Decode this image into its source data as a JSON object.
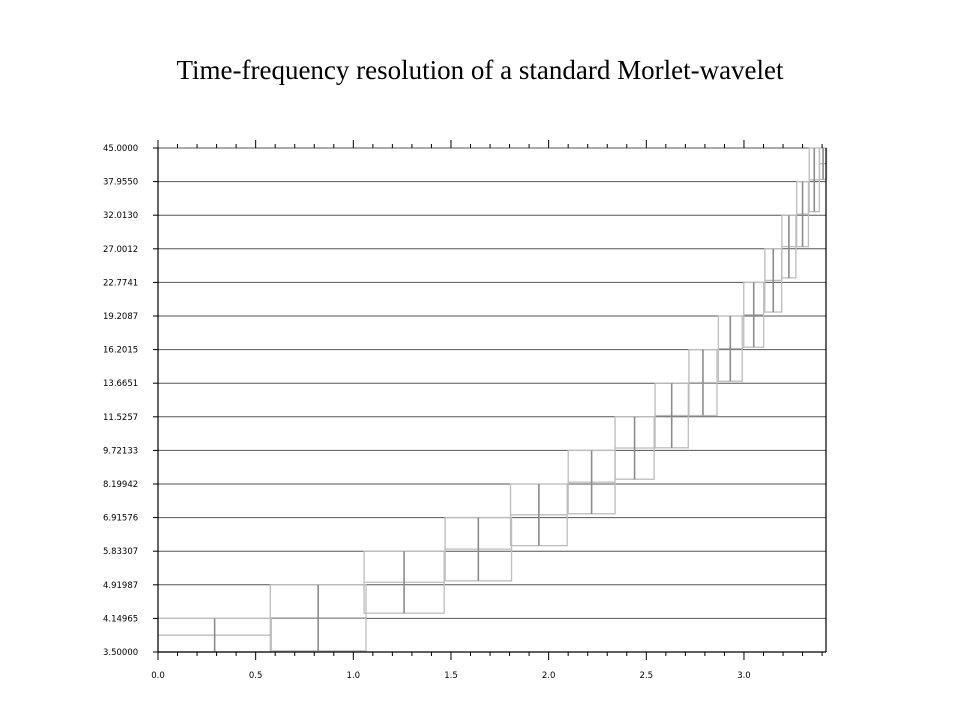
{
  "chart_data": {
    "type": "box",
    "title": "Time-frequency resolution of a standard Morlet-wavelet",
    "xlabel": "",
    "ylabel": "",
    "xlim": [
      0,
      3.42
    ],
    "x_ticks": [
      "0.0",
      "0.5",
      "1.0",
      "1.5",
      "2.0",
      "2.5",
      "3.0"
    ],
    "y_ticks": [
      "3.50000",
      "4.14965",
      "4.91987",
      "5.83307",
      "6.91576",
      "8.19942",
      "9.72133",
      "11.5257",
      "13.6651",
      "16.2015",
      "19.2087",
      "22.7741",
      "27.0012",
      "32.0130",
      "37.9550",
      "45.0000"
    ],
    "grid": "horizontal",
    "box_color": "#bdbdbd",
    "center_line_color": "#8c8c8c",
    "tiles": [
      {
        "level": 0,
        "t": 0.29,
        "half_width": 0.29,
        "f_low": 3.5,
        "f_high": 4.15
      },
      {
        "level": 1,
        "t": 0.82,
        "half_width": 0.245,
        "f_low": 3.52,
        "f_high": 4.92
      },
      {
        "level": 2,
        "t": 1.26,
        "half_width": 0.205,
        "f_low": 4.26,
        "f_high": 5.83
      },
      {
        "level": 3,
        "t": 1.64,
        "half_width": 0.17,
        "f_low": 5.02,
        "f_high": 6.92
      },
      {
        "level": 4,
        "t": 1.95,
        "half_width": 0.145,
        "f_low": 6.0,
        "f_high": 8.2
      },
      {
        "level": 5,
        "t": 2.22,
        "half_width": 0.12,
        "f_low": 7.05,
        "f_high": 9.72
      },
      {
        "level": 6,
        "t": 2.44,
        "half_width": 0.1,
        "f_low": 8.4,
        "f_high": 11.53
      },
      {
        "level": 7,
        "t": 2.63,
        "half_width": 0.085,
        "f_low": 9.85,
        "f_high": 13.67
      },
      {
        "level": 8,
        "t": 2.79,
        "half_width": 0.072,
        "f_low": 11.6,
        "f_high": 16.2
      },
      {
        "level": 9,
        "t": 2.93,
        "half_width": 0.061,
        "f_low": 13.8,
        "f_high": 19.21
      },
      {
        "level": 10,
        "t": 3.05,
        "half_width": 0.051,
        "f_low": 16.4,
        "f_high": 22.77
      },
      {
        "level": 11,
        "t": 3.15,
        "half_width": 0.043,
        "f_low": 19.6,
        "f_high": 27.0
      },
      {
        "level": 12,
        "t": 3.23,
        "half_width": 0.036,
        "f_low": 23.3,
        "f_high": 32.01
      },
      {
        "level": 13,
        "t": 3.3,
        "half_width": 0.03,
        "f_low": 27.3,
        "f_high": 37.96
      },
      {
        "level": 14,
        "t": 3.36,
        "half_width": 0.026,
        "f_low": 32.6,
        "f_high": 45.0
      },
      {
        "level": 15,
        "t": 3.405,
        "half_width": 0.018,
        "f_low": 38.4,
        "f_high": 45.0
      }
    ]
  }
}
